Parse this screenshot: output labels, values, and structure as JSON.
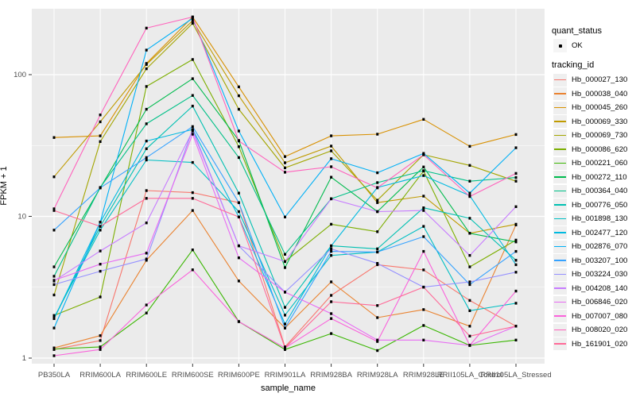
{
  "figure": {
    "panel_fill": "#EBEBEB",
    "grid_color": "#FFFFFF",
    "tick_color": "#333333",
    "tick_label_color": "#4D4D4D",
    "point_color": "#000000"
  },
  "axes": {
    "x_title": "sample_name",
    "y_title": "FPKM + 1",
    "y_tick_labels": [
      "1",
      "10",
      "100"
    ]
  },
  "legend": {
    "quant_title": "quant_status",
    "quant_item_label": "OK",
    "tracking_title": "tracking_id"
  },
  "chart_data": {
    "type": "line",
    "title": "",
    "xlabel": "sample_name",
    "ylabel": "FPKM + 1",
    "y_scale": "log10",
    "grid": true,
    "legend_position": "right",
    "y_ticks": [
      1,
      10,
      100
    ],
    "y_minor_ticks": [
      3.1623,
      31.623
    ],
    "ylim_log10": [
      -0.04,
      2.47
    ],
    "categories": [
      "PB350LA",
      "RRIM600LA",
      "RRIM600LE",
      "RRIM600SE",
      "RRIM600PE",
      "RRIM901LA",
      "RRIM928BA",
      "RRIM928LA",
      "RRIM928LE",
      "RRII105LA_Control",
      "RRII105LA_Stressed"
    ],
    "quant_status": "OK",
    "series": [
      {
        "name": "Hb_000027_130",
        "color": "#F8766D",
        "values": [
          1.15,
          1.33,
          15.2,
          14.7,
          12.5,
          1.2,
          2.77,
          4.56,
          4.19,
          2.55,
          1.68
        ]
      },
      {
        "name": "Hb_000038_040",
        "color": "#EA8331",
        "values": [
          1.18,
          1.44,
          4.9,
          11.0,
          3.5,
          1.63,
          3.45,
          1.93,
          2.2,
          1.68,
          8.7
        ]
      },
      {
        "name": "Hb_000045_260",
        "color": "#D89000",
        "values": [
          36,
          37,
          120,
          255,
          82,
          26.4,
          37,
          38,
          48.4,
          31.2,
          37.8
        ]
      },
      {
        "name": "Hb_000069_330",
        "color": "#C09B00",
        "values": [
          19.0,
          46.5,
          118,
          240,
          71,
          23.9,
          31.3,
          12.5,
          13.9,
          7.6,
          8.8
        ]
      },
      {
        "name": "Hb_000069_730",
        "color": "#A3A500",
        "values": [
          2.79,
          33.7,
          110,
          230,
          57,
          22.0,
          29.0,
          13.0,
          27.2,
          22.9,
          17.7
        ]
      },
      {
        "name": "Hb_000086_620",
        "color": "#7CAE00",
        "values": [
          2.0,
          2.7,
          82.5,
          128,
          31,
          4.8,
          8.8,
          7.8,
          20.9,
          4.4,
          6.8
        ]
      },
      {
        "name": "Hb_000221_060",
        "color": "#39B600",
        "values": [
          1.16,
          1.2,
          2.08,
          5.8,
          1.81,
          1.15,
          1.49,
          1.13,
          1.7,
          1.23,
          1.34
        ]
      },
      {
        "name": "Hb_000272_110",
        "color": "#00BB4E",
        "values": [
          4.4,
          15.9,
          57,
          93.6,
          34.3,
          4.35,
          18.9,
          10.8,
          22.3,
          7.6,
          6.6
        ]
      },
      {
        "name": "Hb_000364_040",
        "color": "#00C087",
        "values": [
          3.78,
          16.0,
          45,
          71.3,
          26,
          5.4,
          13.3,
          17.3,
          21.0,
          17.7,
          18.8
        ]
      },
      {
        "name": "Hb_000776_050",
        "color": "#00C0B2",
        "values": [
          1.9,
          8.5,
          30,
          60,
          14.6,
          2.28,
          6.2,
          5.9,
          11.5,
          9.7,
          4.9
        ]
      },
      {
        "name": "Hb_001898_130",
        "color": "#00BFC4",
        "values": [
          1.93,
          8.0,
          25,
          24,
          10.8,
          2.01,
          5.3,
          5.6,
          8.5,
          2.16,
          2.44
        ]
      },
      {
        "name": "Hb_002477_120",
        "color": "#00BAE0",
        "values": [
          1.9,
          9.1,
          34,
          41,
          9.9,
          1.74,
          6.2,
          16.0,
          19.4,
          14.0,
          4.56
        ]
      },
      {
        "name": "Hb_002876_070",
        "color": "#00B0F6",
        "values": [
          1.63,
          9.1,
          149,
          250,
          40,
          9.9,
          25.5,
          20.3,
          27.8,
          14.6,
          30.5
        ]
      },
      {
        "name": "Hb_003207_100",
        "color": "#35A2FF",
        "values": [
          8.0,
          15.9,
          26,
          43,
          12.5,
          1.63,
          5.66,
          5.6,
          7.2,
          3.3,
          5.66
        ]
      },
      {
        "name": "Hb_003224_030",
        "color": "#9590FF",
        "values": [
          3.3,
          4.1,
          5.0,
          41,
          6.2,
          2.92,
          5.9,
          4.66,
          3.17,
          3.45,
          4.04
        ]
      },
      {
        "name": "Hb_004208_140",
        "color": "#C77CFF",
        "values": [
          3.5,
          5.7,
          9.0,
          40,
          6.2,
          4.8,
          13.3,
          10.8,
          11.0,
          5.3,
          11.7
        ]
      },
      {
        "name": "Hb_006846_020",
        "color": "#E76BF3",
        "values": [
          3.54,
          4.6,
          5.5,
          38,
          5.1,
          2.92,
          2.06,
          1.34,
          1.34,
          1.23,
          1.68
        ]
      },
      {
        "name": "Hb_007007_080",
        "color": "#FA62DB",
        "values": [
          1.04,
          1.15,
          2.37,
          4.2,
          1.81,
          1.18,
          1.9,
          1.31,
          5.66,
          1.23,
          2.97
        ]
      },
      {
        "name": "Hb_008020_020",
        "color": "#FF62BC",
        "values": [
          11.3,
          52,
          213,
          255,
          34,
          20.5,
          22.4,
          15.9,
          27.2,
          13.8,
          20.1
        ]
      },
      {
        "name": "Hb_161901_020",
        "color": "#FF6A98",
        "values": [
          11.0,
          8.5,
          13.4,
          13.4,
          9.9,
          1.18,
          2.5,
          2.35,
          3.17,
          1.43,
          1.68
        ]
      }
    ]
  }
}
